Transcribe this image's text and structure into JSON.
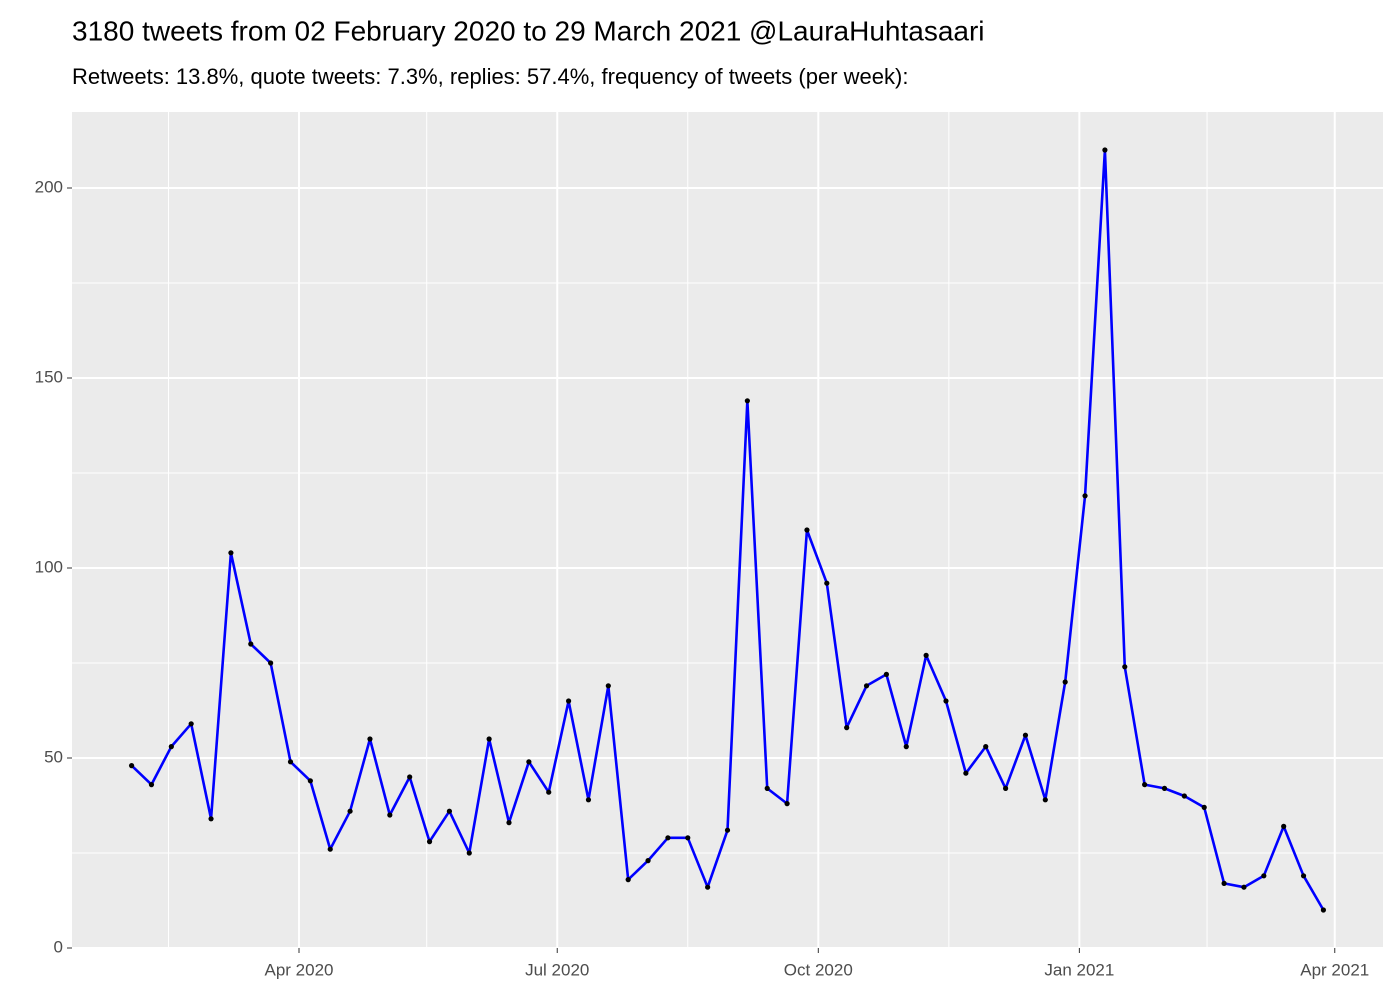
{
  "chart_data": {
    "type": "line",
    "title": "3180 tweets from 02 February 2020 to 29 March 2021 @LauraHuhtasaari",
    "subtitle": "Retweets: 13.8%, quote tweets: 7.3%, replies: 57.4%, frequency of tweets (per week):",
    "x": [
      "2020-02-02",
      "2020-02-09",
      "2020-02-16",
      "2020-02-23",
      "2020-03-01",
      "2020-03-08",
      "2020-03-15",
      "2020-03-22",
      "2020-03-29",
      "2020-04-05",
      "2020-04-12",
      "2020-04-19",
      "2020-04-26",
      "2020-05-03",
      "2020-05-10",
      "2020-05-17",
      "2020-05-24",
      "2020-05-31",
      "2020-06-07",
      "2020-06-14",
      "2020-06-21",
      "2020-06-28",
      "2020-07-05",
      "2020-07-12",
      "2020-07-19",
      "2020-07-26",
      "2020-08-02",
      "2020-08-09",
      "2020-08-16",
      "2020-08-23",
      "2020-08-30",
      "2020-09-06",
      "2020-09-13",
      "2020-09-20",
      "2020-09-27",
      "2020-10-04",
      "2020-10-11",
      "2020-10-18",
      "2020-10-25",
      "2020-11-01",
      "2020-11-08",
      "2020-11-15",
      "2020-11-22",
      "2020-11-29",
      "2020-12-06",
      "2020-12-13",
      "2020-12-20",
      "2020-12-27",
      "2021-01-03",
      "2021-01-10",
      "2021-01-17",
      "2021-01-24",
      "2021-01-31",
      "2021-02-07",
      "2021-02-14",
      "2021-02-21",
      "2021-02-28",
      "2021-03-07",
      "2021-03-14",
      "2021-03-21",
      "2021-03-28"
    ],
    "series": [
      {
        "color": "#0000ff",
        "point_color": "#000000",
        "values": [
          48,
          43,
          53,
          59,
          34,
          104,
          80,
          75,
          49,
          44,
          26,
          36,
          55,
          35,
          45,
          28,
          36,
          25,
          55,
          33,
          49,
          41,
          65,
          39,
          69,
          18,
          23,
          29,
          29,
          16,
          31,
          144,
          42,
          38,
          110,
          96,
          58,
          69,
          72,
          53,
          77,
          65,
          46,
          53,
          42,
          56,
          39,
          70,
          119,
          210,
          74,
          43,
          42,
          40,
          37,
          17,
          16,
          19,
          32,
          19,
          10
        ]
      }
    ],
    "xlim": [
      "2020-01-12",
      "2021-04-18"
    ],
    "xticks": [
      {
        "value": "2020-04-01",
        "label": "Apr 2020"
      },
      {
        "value": "2020-07-01",
        "label": "Jul 2020"
      },
      {
        "value": "2020-10-01",
        "label": "Oct 2020"
      },
      {
        "value": "2021-01-01",
        "label": "Jan 2021"
      },
      {
        "value": "2021-04-01",
        "label": "Apr 2021"
      }
    ],
    "xminorticks": [
      "2020-02-15",
      "2020-05-16",
      "2020-08-16",
      "2020-11-16",
      "2021-02-15"
    ],
    "ylim": [
      0,
      220
    ],
    "yticks": [
      0,
      50,
      100,
      150,
      200
    ],
    "yminorticks": [
      25,
      75,
      125,
      175
    ],
    "grid": true
  }
}
